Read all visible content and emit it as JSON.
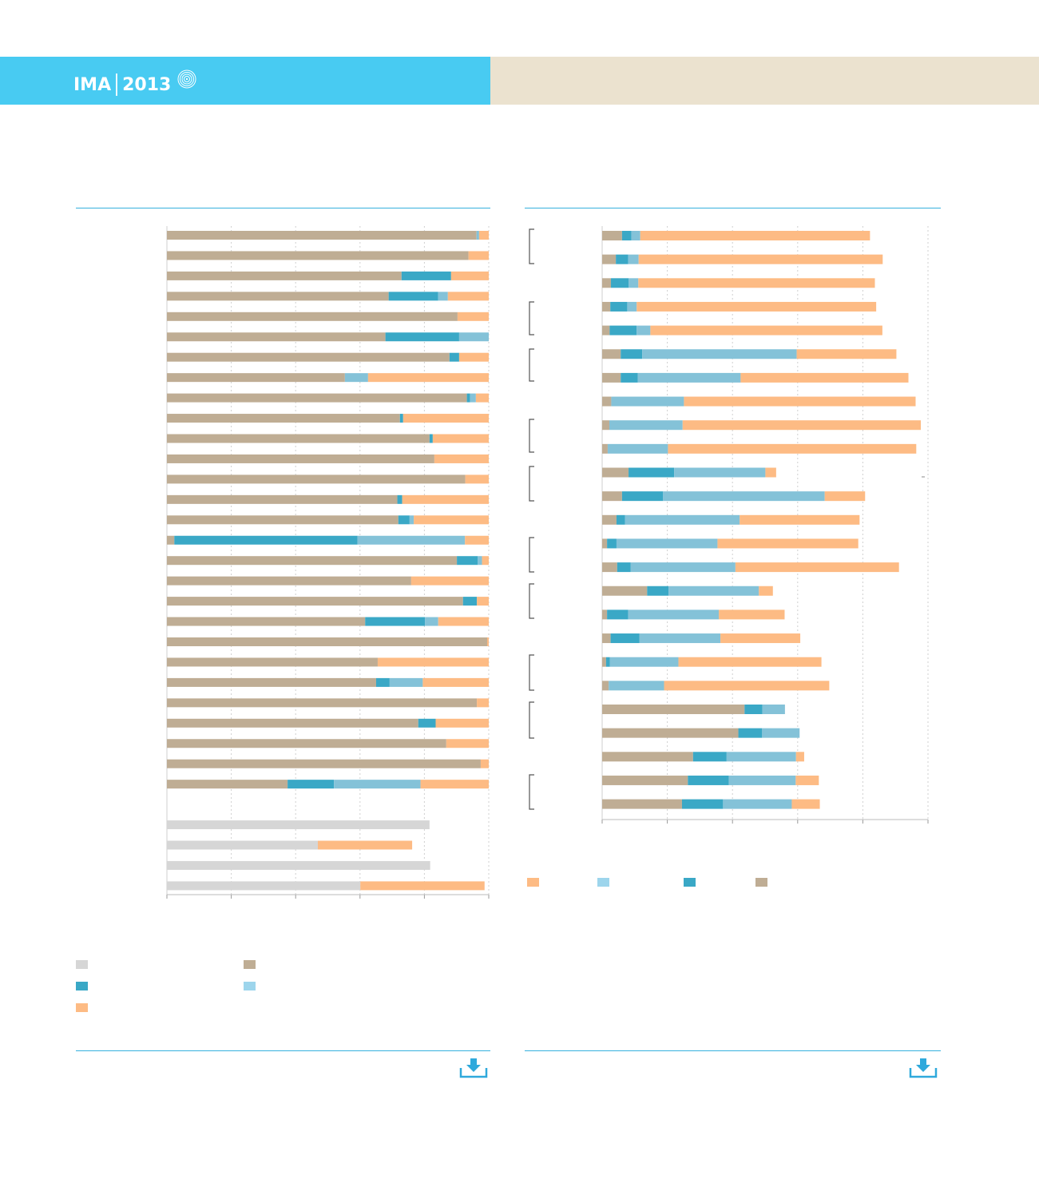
{
  "header": {
    "logo_text": "IMA",
    "logo_year": "2013",
    "band_left_color": "#48cbf2",
    "band_right_color": "#ebe2cf"
  },
  "icons": {
    "logo_mark": "concentric-rings-icon",
    "download_left": "download-icon",
    "download_right": "download-icon"
  },
  "colors": {
    "tan": "#bfad94",
    "teal": "#3aa8c6",
    "lightblue": "#84c2d8",
    "orange": "#fdbb84",
    "grey": "#d6d6d6",
    "legend_lightblue": "#9dd5ec",
    "grid": "#cfcfcf"
  },
  "chart_data": [
    {
      "type": "bar",
      "orientation": "horizontal",
      "stacked": true,
      "xlim": [
        0,
        100
      ],
      "grid": true,
      "series_order": [
        "grey",
        "tan",
        "teal",
        "lightblue",
        "orange"
      ],
      "rows": [
        [
          0,
          96.2,
          0,
          0.8,
          3.0
        ],
        [
          0,
          93.7,
          0,
          0,
          6.3
        ],
        [
          0,
          72.9,
          15.4,
          0,
          11.7
        ],
        [
          0,
          68.9,
          15.4,
          3.0,
          12.7
        ],
        [
          0,
          90.3,
          0,
          0,
          9.7
        ],
        [
          0,
          67.9,
          22.9,
          9.2,
          0
        ],
        [
          0,
          87.8,
          3.0,
          0,
          9.2
        ],
        [
          0,
          55.3,
          0,
          7.2,
          37.5
        ],
        [
          0,
          93.2,
          1.0,
          1.8,
          4.0
        ],
        [
          0,
          72.4,
          1.0,
          0,
          26.6
        ],
        [
          0,
          81.6,
          1.0,
          0,
          17.4
        ],
        [
          0,
          83.1,
          0,
          0,
          16.9
        ],
        [
          0,
          92.7,
          0,
          0,
          7.3
        ],
        [
          0,
          71.6,
          1.5,
          0,
          26.9
        ],
        [
          0,
          71.9,
          3.5,
          1.3,
          23.3
        ],
        [
          0,
          2.3,
          56.9,
          33.4,
          7.4
        ],
        [
          0,
          90.1,
          6.5,
          1.3,
          2.1
        ],
        [
          0,
          75.9,
          0,
          0,
          24.1
        ],
        [
          0,
          92.0,
          4.3,
          0,
          3.7
        ],
        [
          0,
          61.6,
          18.6,
          4.1,
          15.7
        ],
        [
          0,
          99.5,
          0,
          0,
          0.5
        ],
        [
          0,
          65.5,
          0,
          0,
          34.5
        ],
        [
          0,
          65.0,
          4.2,
          10.3,
          20.5
        ],
        [
          0,
          96.3,
          0,
          0,
          3.7
        ],
        [
          0,
          78.1,
          5.4,
          0,
          16.5
        ],
        [
          0,
          86.8,
          0,
          0,
          13.2
        ],
        [
          0,
          97.5,
          0,
          0,
          2.5
        ],
        [
          0,
          37.5,
          14.4,
          26.9,
          21.2
        ],
        null,
        [
          81.6,
          0,
          0,
          0,
          0
        ],
        [
          46.9,
          0,
          0,
          0,
          29.3
        ],
        [
          81.8,
          0,
          0,
          0,
          0
        ],
        [
          60.1,
          0,
          0,
          0,
          38.6
        ]
      ]
    },
    {
      "type": "bar",
      "orientation": "horizontal",
      "stacked": true,
      "xlim": [
        0,
        100
      ],
      "grid": true,
      "series_order": [
        "tan",
        "teal",
        "lightblue",
        "orange"
      ],
      "rows": [
        [
          6.1,
          2.9,
          2.7,
          70.5
        ],
        [
          4.2,
          3.8,
          3.2,
          74.9
        ],
        [
          2.7,
          5.4,
          3.0,
          72.6
        ],
        [
          2.5,
          5.2,
          2.9,
          73.5
        ],
        [
          2.3,
          8.3,
          4.2,
          71.2
        ],
        [
          5.7,
          6.6,
          47.4,
          30.6
        ],
        [
          5.7,
          5.2,
          31.6,
          51.5
        ],
        [
          2.8,
          0,
          22.3,
          71.1
        ],
        [
          2.2,
          0,
          22.5,
          73.1
        ],
        [
          1.7,
          0,
          18.5,
          76.2
        ],
        [
          8.1,
          14.0,
          28.0,
          3.3
        ],
        [
          6.1,
          12.6,
          49.6,
          12.4
        ],
        [
          4.4,
          2.6,
          35.2,
          36.8
        ],
        [
          1.5,
          2.9,
          31.0,
          43.2
        ],
        [
          4.6,
          4.1,
          32.2,
          50.2
        ],
        [
          13.8,
          6.6,
          27.7,
          4.3
        ],
        [
          1.5,
          6.5,
          27.8,
          20.2
        ],
        [
          2.6,
          8.8,
          24.9,
          24.5
        ],
        [
          1.2,
          1.2,
          21.0,
          43.9
        ],
        [
          2.0,
          0,
          17.0,
          50.7
        ],
        [
          43.7,
          5.5,
          6.9,
          0
        ],
        [
          41.8,
          7.3,
          11.5,
          0
        ],
        [
          27.9,
          10.3,
          21.3,
          2.5
        ],
        [
          26.3,
          12.6,
          20.5,
          7.1
        ],
        [
          24.5,
          12.6,
          21.1,
          8.6
        ]
      ]
    }
  ]
}
